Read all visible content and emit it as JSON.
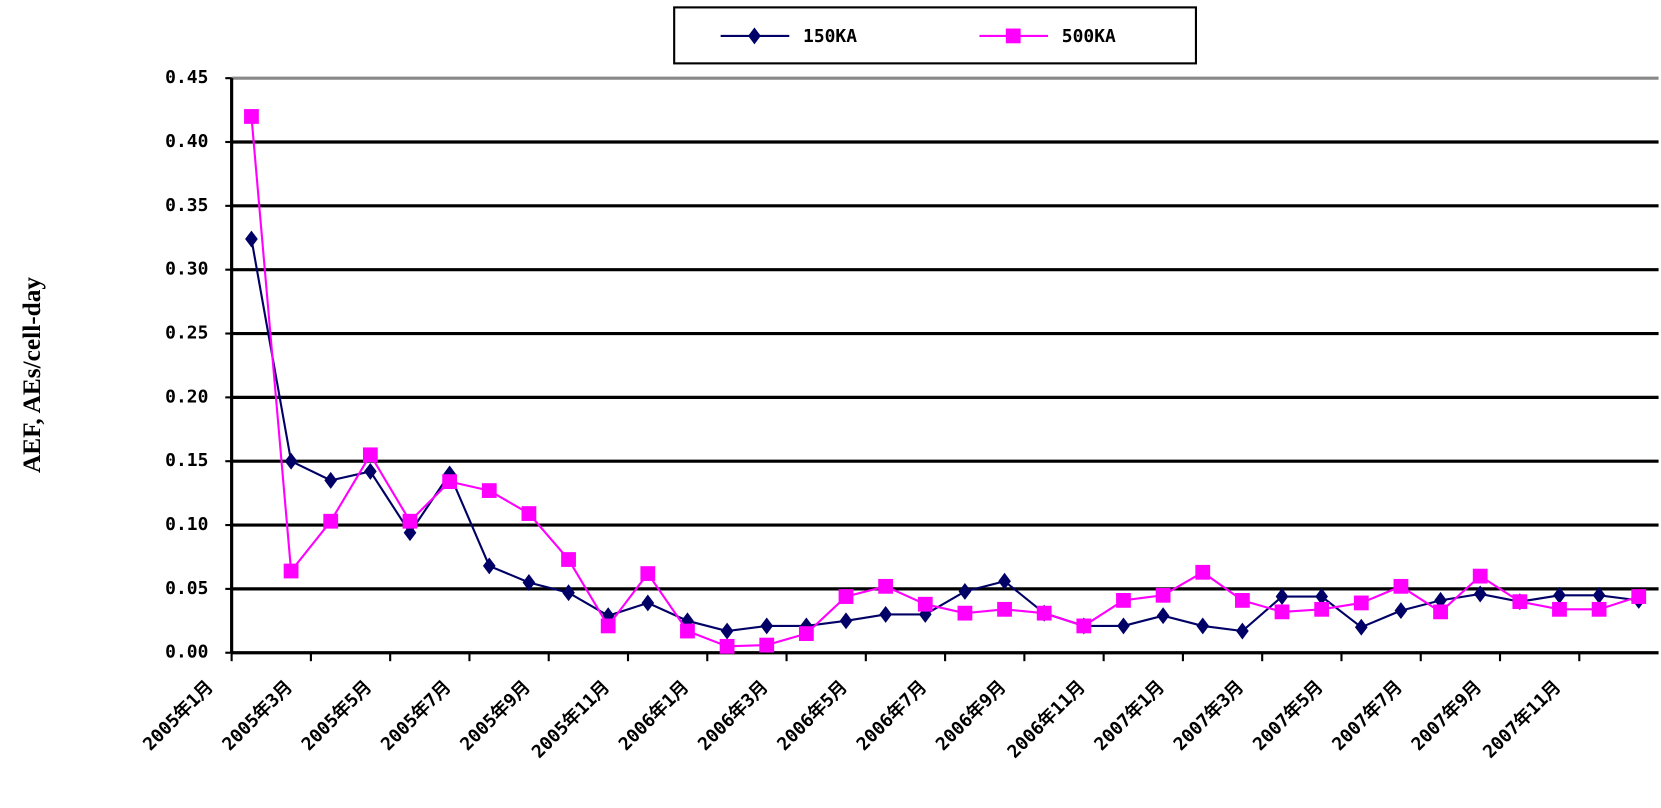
{
  "chart_data": {
    "type": "line",
    "ylabel": "AEF, AEs/cell-day",
    "categories": [
      "2005年1月",
      null,
      "2005年3月",
      null,
      "2005年5月",
      null,
      "2005年7月",
      null,
      "2005年9月",
      null,
      "2005年11月",
      null,
      "2006年1月",
      null,
      "2006年3月",
      null,
      "2006年5月",
      null,
      "2006年7月",
      null,
      "2006年9月",
      null,
      "2006年11月",
      null,
      "2007年1月",
      null,
      "2007年3月",
      null,
      "2007年5月",
      null,
      "2007年7月",
      null,
      "2007年9月",
      null,
      "2007年11月",
      null
    ],
    "series": [
      {
        "name": "150KA",
        "color": "#000066",
        "marker": "diamond",
        "values": [
          0.324,
          0.15,
          0.135,
          0.142,
          0.094,
          0.14,
          0.068,
          0.055,
          0.047,
          0.029,
          0.039,
          0.025,
          0.017,
          0.021,
          0.021,
          0.025,
          0.03,
          0.03,
          0.048,
          0.056,
          0.031,
          0.021,
          0.021,
          0.029,
          0.021,
          0.017,
          0.044,
          0.044,
          0.02,
          0.033,
          0.041,
          0.046,
          0.04,
          0.045,
          0.045,
          0.041
        ]
      },
      {
        "name": "500KA",
        "color": "#ff00ff",
        "marker": "square",
        "values": [
          0.42,
          0.064,
          0.103,
          0.155,
          0.103,
          0.134,
          0.127,
          0.109,
          0.073,
          0.021,
          0.062,
          0.017,
          0.005,
          0.006,
          0.015,
          0.044,
          0.052,
          0.038,
          0.031,
          0.034,
          0.031,
          0.021,
          0.041,
          0.045,
          0.063,
          0.041,
          0.032,
          0.034,
          0.039,
          0.052,
          0.032,
          0.06,
          0.04,
          0.034,
          0.034,
          0.044
        ]
      }
    ],
    "ylim": [
      0,
      0.45
    ],
    "yticks": [
      {
        "value": 0,
        "label": "0.00"
      },
      0.05,
      {
        "value": 0.1,
        "label": "0.10"
      },
      0.15,
      {
        "value": 0.2,
        "label": "0.20"
      },
      0.25,
      {
        "value": 0.3,
        "label": "0.30"
      },
      0.35,
      {
        "value": 0.4,
        "label": "0.40"
      },
      0.45
    ],
    "grid": true,
    "legend": "top"
  }
}
